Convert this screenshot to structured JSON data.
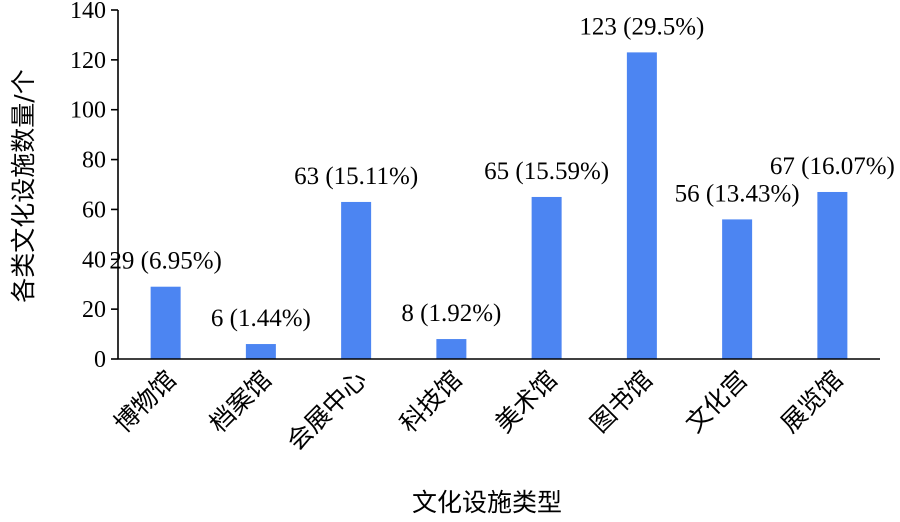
{
  "chart_data": {
    "type": "bar",
    "title": "",
    "xlabel": "文化设施类型",
    "ylabel": "各类文化设施数量/个",
    "ylim": [
      0,
      140
    ],
    "yticks": [
      0,
      20,
      40,
      60,
      80,
      100,
      120,
      140
    ],
    "categories": [
      "博物馆",
      "档案馆",
      "会展中心",
      "科技馆",
      "美术馆",
      "图书馆",
      "文化宫",
      "展览馆"
    ],
    "values": [
      29,
      6,
      63,
      8,
      65,
      123,
      56,
      67
    ],
    "data_labels": [
      "29 (6.95%)",
      "6 (1.44%)",
      "63 (15.11%)",
      "8 (1.92%)",
      "65 (15.59%)",
      "123 (29.5%)",
      "56 (13.43%)",
      "67 (16.07%)"
    ],
    "bar_color": "#4c85f2",
    "grid": false,
    "legend": "none"
  }
}
